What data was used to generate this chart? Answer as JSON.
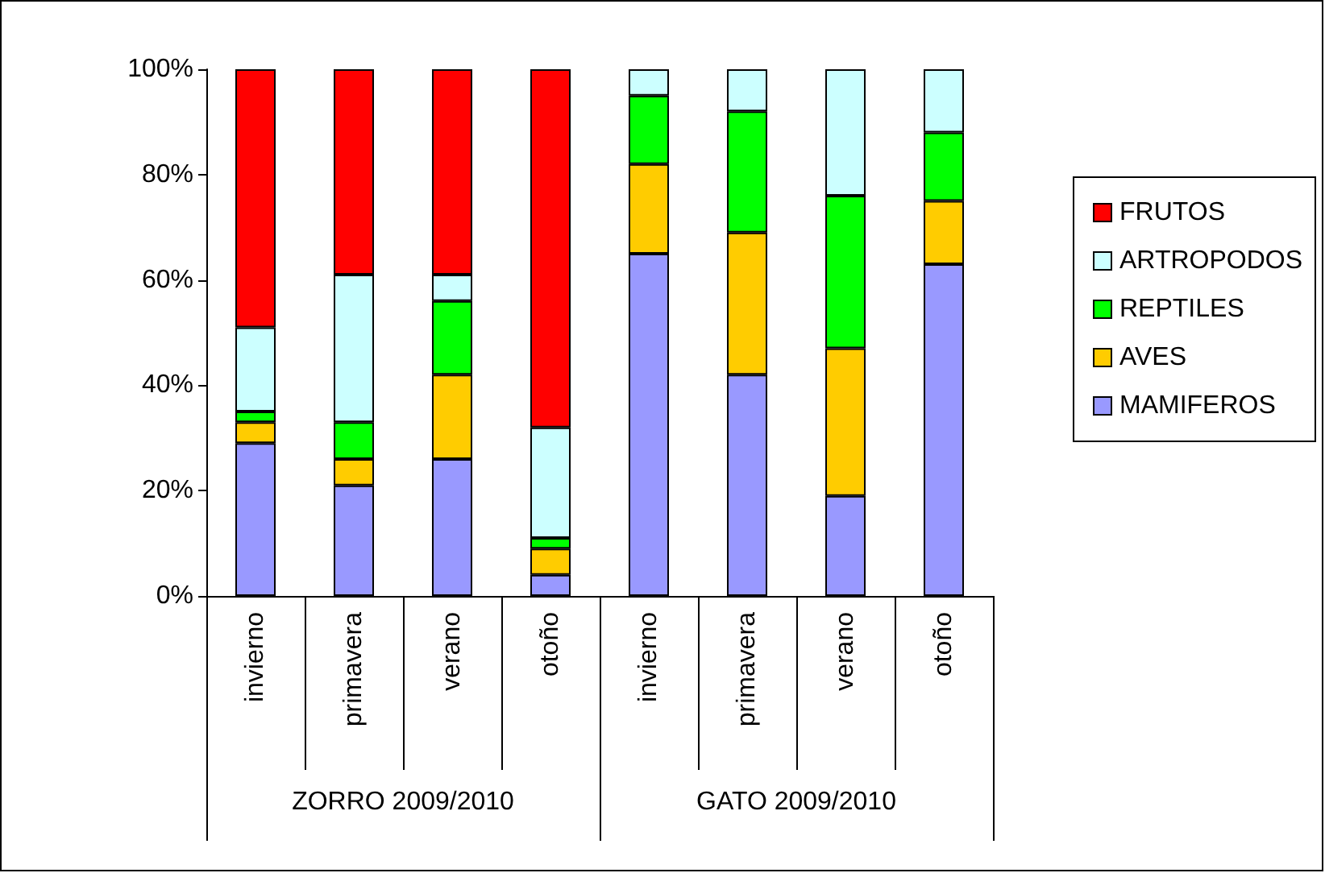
{
  "chart_data": {
    "type": "bar",
    "stacked": true,
    "legend": "right",
    "categories": [
      "invierno",
      "primavera",
      "verano",
      "otoño",
      "invierno",
      "primavera",
      "verano",
      "otoño"
    ],
    "series": [
      {
        "name": "MAMIFEROS",
        "color": "#9999ff",
        "values": [
          29,
          21,
          26,
          4,
          65,
          42,
          19,
          63
        ]
      },
      {
        "name": "AVES",
        "color": "#ffcc00",
        "values": [
          4,
          5,
          16,
          5,
          17,
          27,
          28,
          12
        ]
      },
      {
        "name": "REPTILES",
        "color": "#00ff00",
        "values": [
          2,
          7,
          14,
          2,
          13,
          23,
          29,
          13
        ]
      },
      {
        "name": "ARTROPODOS",
        "color": "#ccffff",
        "values": [
          16,
          28,
          5,
          21,
          5,
          8,
          24,
          12
        ]
      },
      {
        "name": "FRUTOS",
        "color": "#ff0000",
        "values": [
          49,
          39,
          39,
          68,
          0,
          0,
          0,
          0
        ]
      }
    ],
    "ylim": [
      0,
      100
    ],
    "yticks": [
      {
        "value": 0,
        "label": "0%"
      },
      {
        "value": 20,
        "label": "20%"
      },
      {
        "value": 40,
        "label": "40%"
      },
      {
        "value": 60,
        "label": "60%"
      },
      {
        "value": 80,
        "label": "80%"
      },
      {
        "value": 100,
        "label": "100%"
      }
    ],
    "annotations": [
      "ZORRO 2009/2010",
      "GATO 2009/2010"
    ]
  }
}
